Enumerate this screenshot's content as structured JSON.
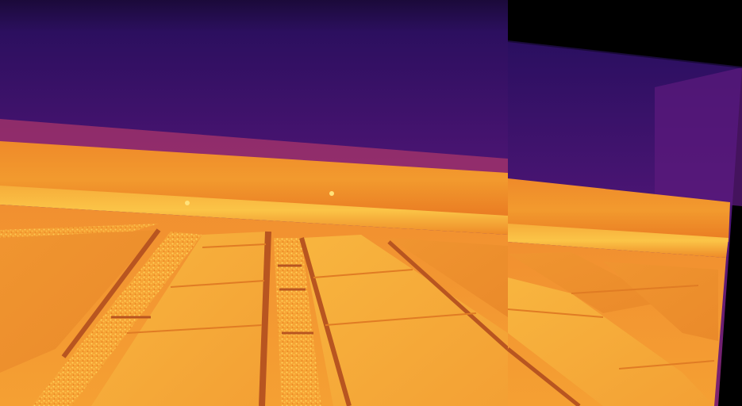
{
  "image": {
    "kind": "thermal-panorama",
    "palette": "inferno",
    "colors": {
      "cold": "#2a0f5e",
      "mid": "#8a2a78",
      "warm": "#e2661e",
      "hot": "#f39a22",
      "hottest": "#ffd45a",
      "void": "#000000"
    }
  }
}
